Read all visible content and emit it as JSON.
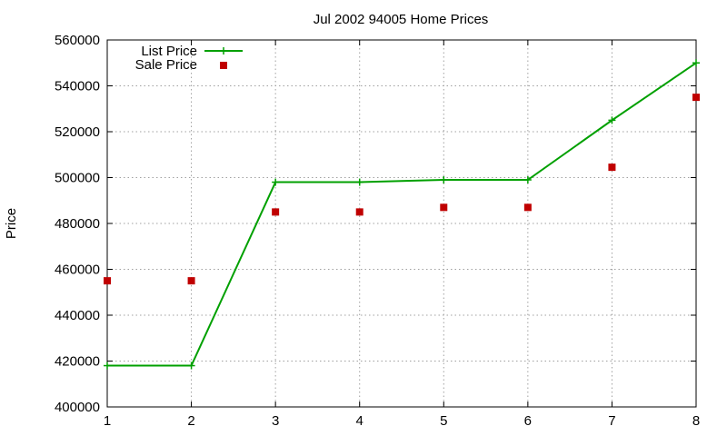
{
  "chart_data": {
    "type": "line",
    "title": "Jul 2002 94005 Home Prices",
    "xlabel": "",
    "ylabel": "Price",
    "x": [
      1,
      2,
      3,
      4,
      5,
      6,
      7,
      8
    ],
    "xlim": [
      1,
      8
    ],
    "ylim": [
      400000,
      560000
    ],
    "x_ticks": [
      "1",
      "2",
      "3",
      "4",
      "5",
      "6",
      "7",
      "8"
    ],
    "y_ticks": [
      "400000",
      "420000",
      "440000",
      "460000",
      "480000",
      "500000",
      "520000",
      "540000",
      "560000"
    ],
    "grid": true,
    "legend_position": "top-left",
    "series": [
      {
        "name": "List Price",
        "style": "line-with-plus-markers",
        "color": "#00a000",
        "values": [
          418000,
          418000,
          498000,
          498000,
          499000,
          499000,
          525000,
          550000
        ]
      },
      {
        "name": "Sale Price",
        "style": "square-markers",
        "color": "#c00000",
        "values": [
          455000,
          455000,
          485000,
          485000,
          487000,
          487000,
          504500,
          535000
        ]
      }
    ]
  }
}
